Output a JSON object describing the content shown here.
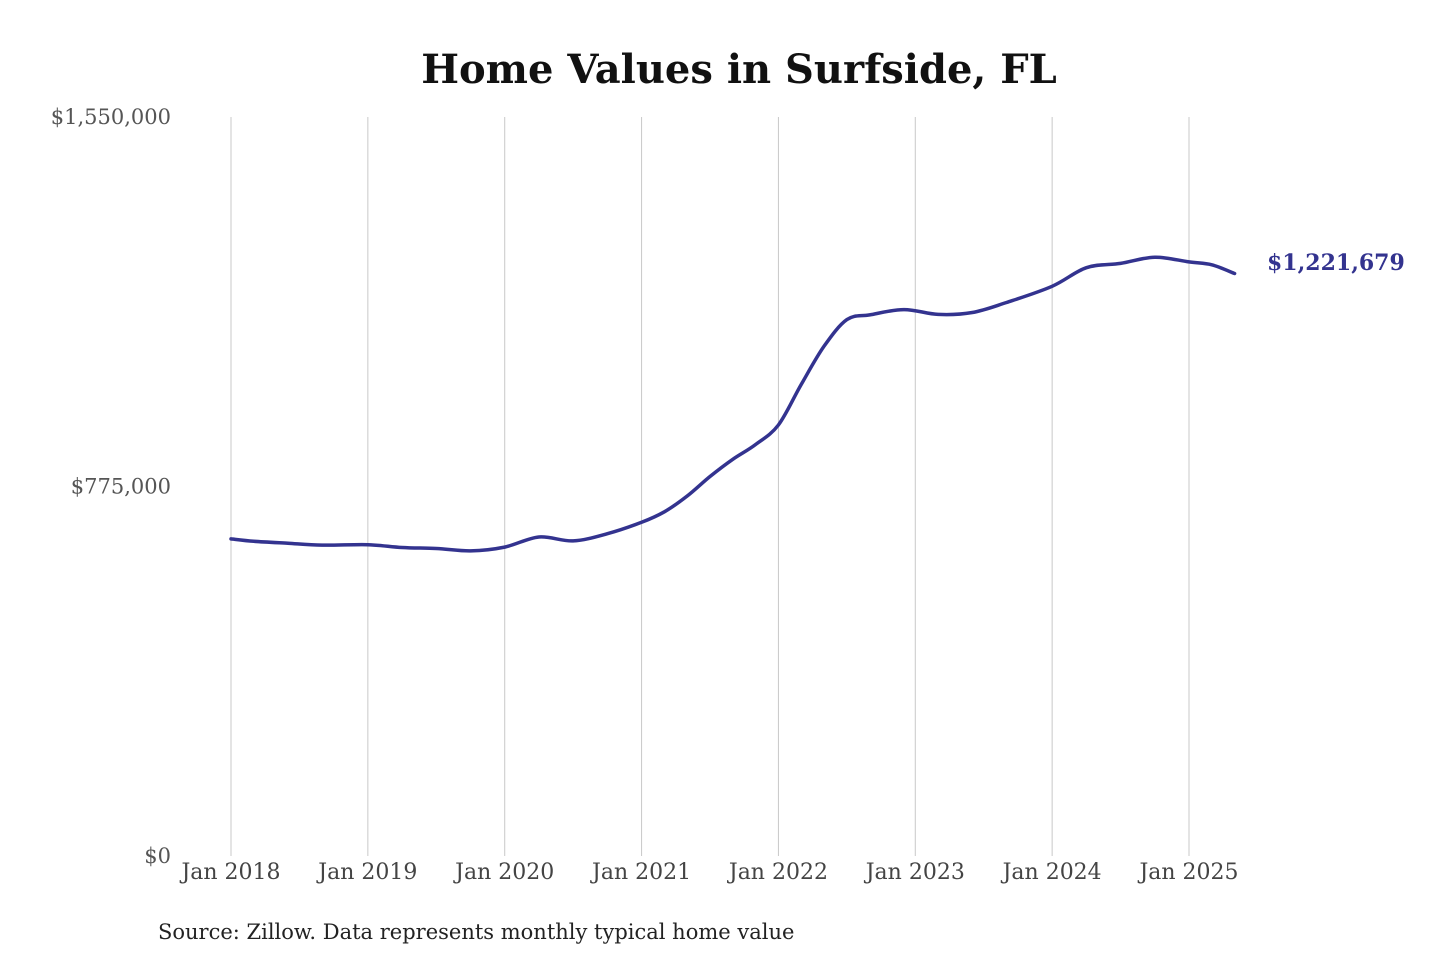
{
  "chart_data": {
    "type": "line",
    "title": "Home Values in Surfside, FL",
    "xlabel": "",
    "ylabel": "",
    "ylim": [
      0,
      1550000
    ],
    "y_ticks": [
      {
        "value": 0,
        "label": "$0"
      },
      {
        "value": 775000,
        "label": "$775,000"
      },
      {
        "value": 1550000,
        "label": "$1,550,000"
      }
    ],
    "x_ticks": [
      {
        "date": "2018-01",
        "label": "Jan 2018"
      },
      {
        "date": "2019-01",
        "label": "Jan 2019"
      },
      {
        "date": "2020-01",
        "label": "Jan 2020"
      },
      {
        "date": "2021-01",
        "label": "Jan 2021"
      },
      {
        "date": "2022-01",
        "label": "Jan 2022"
      },
      {
        "date": "2023-01",
        "label": "Jan 2023"
      },
      {
        "date": "2024-01",
        "label": "Jan 2024"
      },
      {
        "date": "2025-01",
        "label": "Jan 2025"
      }
    ],
    "grid": {
      "vertical": true,
      "horizontal": false
    },
    "legend": "none",
    "line_color": "#33338f",
    "end_label": "$1,221,679",
    "series": [
      {
        "x": [
          "2018-01",
          "2018-03",
          "2018-06",
          "2018-09",
          "2019-01",
          "2019-04",
          "2019-07",
          "2019-10",
          "2020-01",
          "2020-04",
          "2020-07",
          "2020-10",
          "2021-01",
          "2021-03",
          "2021-05",
          "2021-07",
          "2021-09",
          "2021-11",
          "2022-01",
          "2022-03",
          "2022-05",
          "2022-07",
          "2022-09",
          "2022-12",
          "2023-03",
          "2023-06",
          "2023-09",
          "2024-01",
          "2024-04",
          "2024-07",
          "2024-10",
          "2025-01",
          "2025-03",
          "2025-05"
        ],
        "values": [
          665000,
          660000,
          656000,
          652000,
          653000,
          647000,
          645000,
          640000,
          648000,
          669000,
          661000,
          676000,
          700000,
          722000,
          755000,
          796000,
          832000,
          863000,
          904000,
          989000,
          1069000,
          1125000,
          1135000,
          1146000,
          1136000,
          1140000,
          1161000,
          1195000,
          1234000,
          1243000,
          1256000,
          1246000,
          1240000,
          1221679
        ]
      }
    ]
  },
  "source_note": "Source: Zillow. Data represents monthly typical home value"
}
